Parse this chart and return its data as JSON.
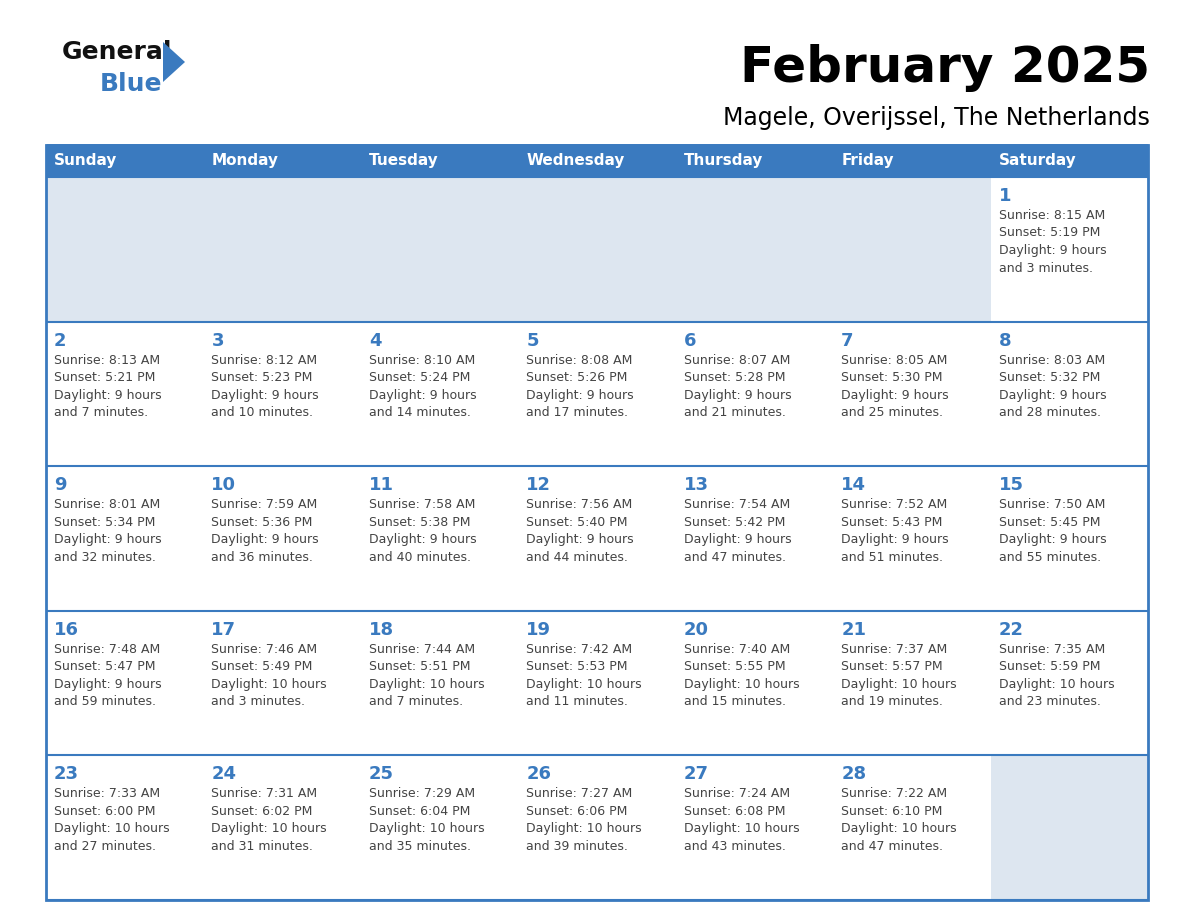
{
  "title": "February 2025",
  "subtitle": "Magele, Overijssel, The Netherlands",
  "days_of_week": [
    "Sunday",
    "Monday",
    "Tuesday",
    "Wednesday",
    "Thursday",
    "Friday",
    "Saturday"
  ],
  "header_bg_color": "#3a7abf",
  "header_text_color": "#ffffff",
  "empty_cell_bg": "#dde6f0",
  "filled_cell_bg": "#ffffff",
  "border_color": "#3a7abf",
  "title_color": "#000000",
  "subtitle_color": "#000000",
  "day_num_color": "#3a7abf",
  "cell_text_color": "#444444",
  "logo_general_color": "#111111",
  "logo_blue_color": "#3a7abf",
  "calendar_data": [
    [
      null,
      null,
      null,
      null,
      null,
      null,
      {
        "day": 1,
        "sunrise": "8:15 AM",
        "sunset": "5:19 PM",
        "daylight": "9 hours and 3 minutes."
      }
    ],
    [
      {
        "day": 2,
        "sunrise": "8:13 AM",
        "sunset": "5:21 PM",
        "daylight": "9 hours and 7 minutes."
      },
      {
        "day": 3,
        "sunrise": "8:12 AM",
        "sunset": "5:23 PM",
        "daylight": "9 hours and 10 minutes."
      },
      {
        "day": 4,
        "sunrise": "8:10 AM",
        "sunset": "5:24 PM",
        "daylight": "9 hours and 14 minutes."
      },
      {
        "day": 5,
        "sunrise": "8:08 AM",
        "sunset": "5:26 PM",
        "daylight": "9 hours and 17 minutes."
      },
      {
        "day": 6,
        "sunrise": "8:07 AM",
        "sunset": "5:28 PM",
        "daylight": "9 hours and 21 minutes."
      },
      {
        "day": 7,
        "sunrise": "8:05 AM",
        "sunset": "5:30 PM",
        "daylight": "9 hours and 25 minutes."
      },
      {
        "day": 8,
        "sunrise": "8:03 AM",
        "sunset": "5:32 PM",
        "daylight": "9 hours and 28 minutes."
      }
    ],
    [
      {
        "day": 9,
        "sunrise": "8:01 AM",
        "sunset": "5:34 PM",
        "daylight": "9 hours and 32 minutes."
      },
      {
        "day": 10,
        "sunrise": "7:59 AM",
        "sunset": "5:36 PM",
        "daylight": "9 hours and 36 minutes."
      },
      {
        "day": 11,
        "sunrise": "7:58 AM",
        "sunset": "5:38 PM",
        "daylight": "9 hours and 40 minutes."
      },
      {
        "day": 12,
        "sunrise": "7:56 AM",
        "sunset": "5:40 PM",
        "daylight": "9 hours and 44 minutes."
      },
      {
        "day": 13,
        "sunrise": "7:54 AM",
        "sunset": "5:42 PM",
        "daylight": "9 hours and 47 minutes."
      },
      {
        "day": 14,
        "sunrise": "7:52 AM",
        "sunset": "5:43 PM",
        "daylight": "9 hours and 51 minutes."
      },
      {
        "day": 15,
        "sunrise": "7:50 AM",
        "sunset": "5:45 PM",
        "daylight": "9 hours and 55 minutes."
      }
    ],
    [
      {
        "day": 16,
        "sunrise": "7:48 AM",
        "sunset": "5:47 PM",
        "daylight": "9 hours and 59 minutes."
      },
      {
        "day": 17,
        "sunrise": "7:46 AM",
        "sunset": "5:49 PM",
        "daylight": "10 hours and 3 minutes."
      },
      {
        "day": 18,
        "sunrise": "7:44 AM",
        "sunset": "5:51 PM",
        "daylight": "10 hours and 7 minutes."
      },
      {
        "day": 19,
        "sunrise": "7:42 AM",
        "sunset": "5:53 PM",
        "daylight": "10 hours and 11 minutes."
      },
      {
        "day": 20,
        "sunrise": "7:40 AM",
        "sunset": "5:55 PM",
        "daylight": "10 hours and 15 minutes."
      },
      {
        "day": 21,
        "sunrise": "7:37 AM",
        "sunset": "5:57 PM",
        "daylight": "10 hours and 19 minutes."
      },
      {
        "day": 22,
        "sunrise": "7:35 AM",
        "sunset": "5:59 PM",
        "daylight": "10 hours and 23 minutes."
      }
    ],
    [
      {
        "day": 23,
        "sunrise": "7:33 AM",
        "sunset": "6:00 PM",
        "daylight": "10 hours and 27 minutes."
      },
      {
        "day": 24,
        "sunrise": "7:31 AM",
        "sunset": "6:02 PM",
        "daylight": "10 hours and 31 minutes."
      },
      {
        "day": 25,
        "sunrise": "7:29 AM",
        "sunset": "6:04 PM",
        "daylight": "10 hours and 35 minutes."
      },
      {
        "day": 26,
        "sunrise": "7:27 AM",
        "sunset": "6:06 PM",
        "daylight": "10 hours and 39 minutes."
      },
      {
        "day": 27,
        "sunrise": "7:24 AM",
        "sunset": "6:08 PM",
        "daylight": "10 hours and 43 minutes."
      },
      {
        "day": 28,
        "sunrise": "7:22 AM",
        "sunset": "6:10 PM",
        "daylight": "10 hours and 47 minutes."
      },
      null
    ]
  ]
}
